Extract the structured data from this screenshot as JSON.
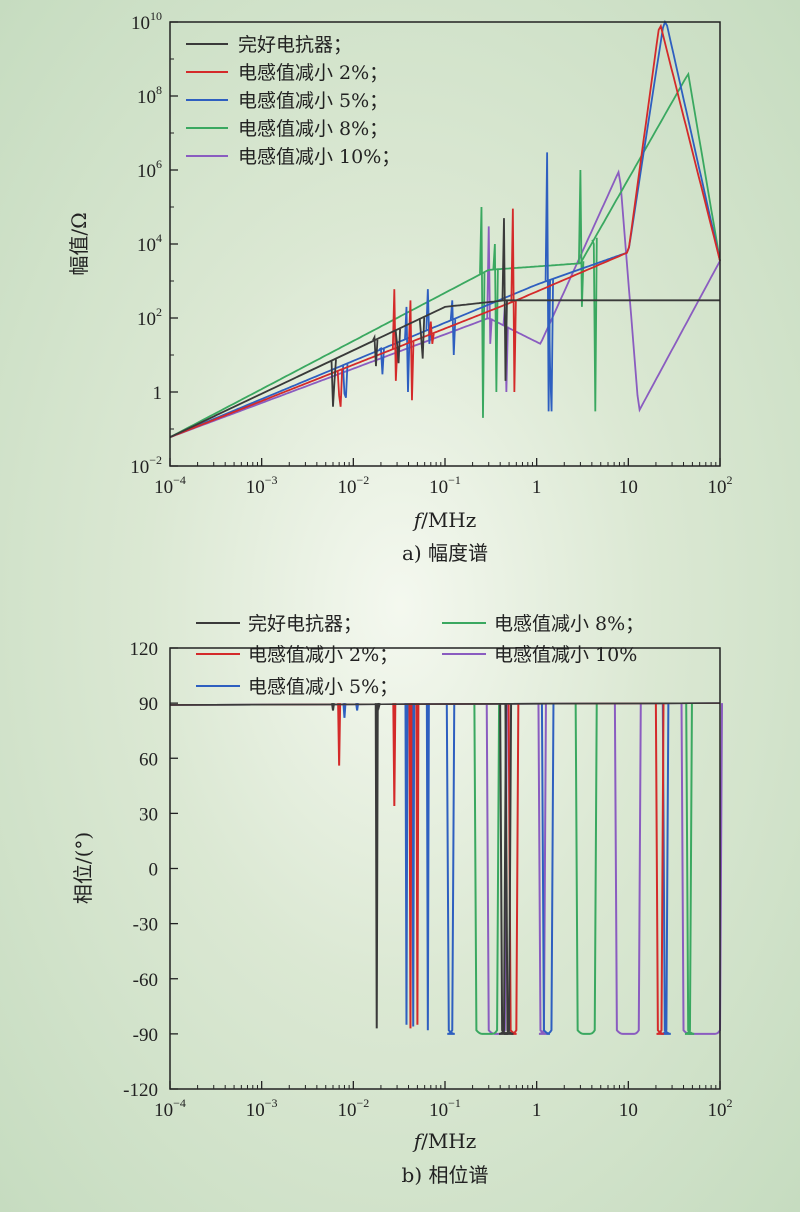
{
  "chart_data": [
    {
      "id": "magnitude",
      "type": "line",
      "caption": "a) 幅度谱",
      "xlabel_italic": "f",
      "xlabel_rest": "/MHz",
      "ylabel": "幅值/Ω",
      "xscale": "log",
      "yscale": "log",
      "xlim": [
        0.0001,
        100
      ],
      "ylim": [
        0.01,
        10000000000
      ],
      "xticks": [
        {
          "v": 0.0001,
          "base": "10",
          "exp": "−4"
        },
        {
          "v": 0.001,
          "base": "10",
          "exp": "−3"
        },
        {
          "v": 0.01,
          "base": "10",
          "exp": "−2"
        },
        {
          "v": 0.1,
          "base": "10",
          "exp": "−1"
        },
        {
          "v": 1,
          "base": "1",
          "exp": ""
        },
        {
          "v": 10,
          "base": "10",
          "exp": ""
        },
        {
          "v": 100,
          "base": "10",
          "exp": "2"
        }
      ],
      "yticks": [
        {
          "v": 0.01,
          "base": "10",
          "exp": "−2"
        },
        {
          "v": 1,
          "base": "1",
          "exp": ""
        },
        {
          "v": 100,
          "base": "10",
          "exp": "2"
        },
        {
          "v": 10000,
          "base": "10",
          "exp": "4"
        },
        {
          "v": 1000000,
          "base": "10",
          "exp": "6"
        },
        {
          "v": 100000000,
          "base": "10",
          "exp": "8"
        },
        {
          "v": 10000000000,
          "base": "10",
          "exp": "10"
        }
      ],
      "legend_position": "top-left",
      "series": [
        {
          "name": "完好电抗器；",
          "color": "#3a3a3a",
          "base": [
            [
              0.0001,
              0.06
            ],
            [
              0.1,
              200
            ],
            [
              0.45,
              300
            ]
          ],
          "spikes": [
            [
              0.006,
              0.4,
              2
            ],
            [
              0.017,
              30,
              5
            ],
            [
              0.03,
              20,
              6
            ],
            [
              0.055,
              30,
              8
            ],
            [
              0.44,
              50000,
              2
            ]
          ],
          "resonance": [
            [
              0.44,
              50000
            ],
            [
              0.445,
              2
            ]
          ]
        },
        {
          "name": "电感值减小 2%；",
          "color": "#d42a2a",
          "base": [
            [
              0.0001,
              0.06
            ],
            [
              0.6,
              300
            ],
            [
              10,
              6000
            ],
            [
              22,
              10000000000.0
            ],
            [
              100,
              3500
            ]
          ],
          "spikes": [
            [
              0.007,
              0.8,
              0.4
            ],
            [
              0.028,
              600,
              2
            ],
            [
              0.042,
              300,
              0.6
            ],
            [
              0.07,
              80,
              20
            ],
            [
              0.55,
              90000,
              1
            ]
          ]
        },
        {
          "name": "电感值减小 5%；",
          "color": "#2e5fc0",
          "base": [
            [
              0.0001,
              0.06
            ],
            [
              1,
              800
            ],
            [
              10,
              6000
            ],
            [
              25,
              15000000000.0
            ],
            [
              100,
              3500
            ]
          ],
          "spikes": [
            [
              0.008,
              0.9,
              0.7
            ],
            [
              0.02,
              15,
              3
            ],
            [
              0.038,
              200,
              1
            ],
            [
              0.065,
              600,
              20
            ],
            [
              0.12,
              300,
              10
            ],
            [
              1.3,
              3000000.0,
              0.3
            ],
            [
              1.4,
              5,
              0.3
            ]
          ]
        },
        {
          "name": "电感值减小 8%；",
          "color": "#3aa860",
          "base": [
            [
              0.0001,
              0.06
            ],
            [
              0.3,
              2000
            ],
            [
              3,
              3000
            ],
            [
              45,
              400000000.0
            ],
            [
              100,
              3500
            ]
          ],
          "spikes": [
            [
              0.25,
              100000.0,
              0.2
            ],
            [
              0.35,
              10000.0,
              1
            ],
            [
              3,
              1000000.0,
              200
            ],
            [
              4.2,
              10000.0,
              0.3
            ]
          ]
        },
        {
          "name": "电感值减小 10%；",
          "color": "#8a5cc0",
          "base": [
            [
              0.0001,
              0.06
            ],
            [
              0.3,
              100
            ],
            [
              1.1,
              20
            ],
            [
              8,
              1000000.0
            ],
            [
              13,
              0.3
            ],
            [
              100,
              3500
            ]
          ],
          "spikes": [
            [
              0.3,
              30000,
              20
            ],
            [
              0.45,
              200,
              1
            ]
          ]
        }
      ]
    },
    {
      "id": "phase",
      "type": "line",
      "caption": "b) 相位谱",
      "xlabel_italic": "f",
      "xlabel_rest": "/MHz",
      "ylabel": "相位/(°)",
      "xscale": "log",
      "xlim": [
        0.0001,
        100
      ],
      "ylim": [
        -120,
        120
      ],
      "xticks": [
        {
          "v": 0.0001,
          "base": "10",
          "exp": "−4"
        },
        {
          "v": 0.001,
          "base": "10",
          "exp": "−3"
        },
        {
          "v": 0.01,
          "base": "10",
          "exp": "−2"
        },
        {
          "v": 0.1,
          "base": "10",
          "exp": "−1"
        },
        {
          "v": 1,
          "base": "1",
          "exp": ""
        },
        {
          "v": 10,
          "base": "10",
          "exp": ""
        },
        {
          "v": 100,
          "base": "10",
          "exp": "2"
        }
      ],
      "yticks": [
        {
          "v": 120,
          "label": "120"
        },
        {
          "v": 90,
          "label": "90"
        },
        {
          "v": 60,
          "label": "60"
        },
        {
          "v": 30,
          "label": "30"
        },
        {
          "v": 0,
          "label": "0"
        },
        {
          "v": -30,
          "label": "-30"
        },
        {
          "v": -60,
          "label": "-60"
        },
        {
          "v": -90,
          "label": "-90"
        },
        {
          "v": -120,
          "label": "-120"
        }
      ],
      "legend_position": "top",
      "legend": [
        {
          "name": "完好电抗器；",
          "color": "#3a3a3a"
        },
        {
          "name": "电感值减小 2%；",
          "color": "#d42a2a"
        },
        {
          "name": "电感值减小 5%；",
          "color": "#2e5fc0"
        },
        {
          "name": "电感值减小 8%；",
          "color": "#3aa860"
        },
        {
          "name": "电感值减小 10%",
          "color": "#8a5cc0"
        }
      ],
      "series": [
        {
          "name": "完好电抗器；",
          "color": "#3a3a3a",
          "dips": [
            [
              0.006,
              86
            ],
            [
              0.018,
              -87
            ],
            [
              0.019,
              88
            ]
          ],
          "bands": [
            [
              0.42,
              0.44
            ],
            [
              0.48,
              0.5
            ]
          ]
        },
        {
          "name": "电感值减小 2%；",
          "color": "#d42a2a",
          "dips": [
            [
              0.007,
              56
            ],
            [
              0.028,
              34
            ],
            [
              0.042,
              -87
            ],
            [
              0.05,
              -85
            ]
          ],
          "bands": [
            [
              0.52,
              0.6
            ],
            [
              21,
              23
            ]
          ]
        },
        {
          "name": "电感值减小 5%；",
          "color": "#2e5fc0",
          "dips": [
            [
              0.008,
              82
            ],
            [
              0.011,
              86
            ],
            [
              0.038,
              -85
            ],
            [
              0.045,
              -86
            ],
            [
              0.065,
              -88
            ]
          ],
          "bands": [
            [
              0.11,
              0.12
            ],
            [
              1.2,
              1.45
            ],
            [
              25,
              26
            ]
          ]
        },
        {
          "name": "电感值减小 8%；",
          "color": "#3aa860",
          "dips": [],
          "bands": [
            [
              0.22,
              0.37
            ],
            [
              2.8,
              4.3
            ],
            [
              45,
              47
            ]
          ]
        },
        {
          "name": "电感值减小 10%；",
          "color": "#8a5cc0",
          "dips": [],
          "bands": [
            [
              0.3,
              0.45
            ],
            [
              1.1,
              1.2
            ],
            [
              7.5,
              13
            ],
            [
              40,
              100
            ]
          ]
        }
      ]
    }
  ]
}
